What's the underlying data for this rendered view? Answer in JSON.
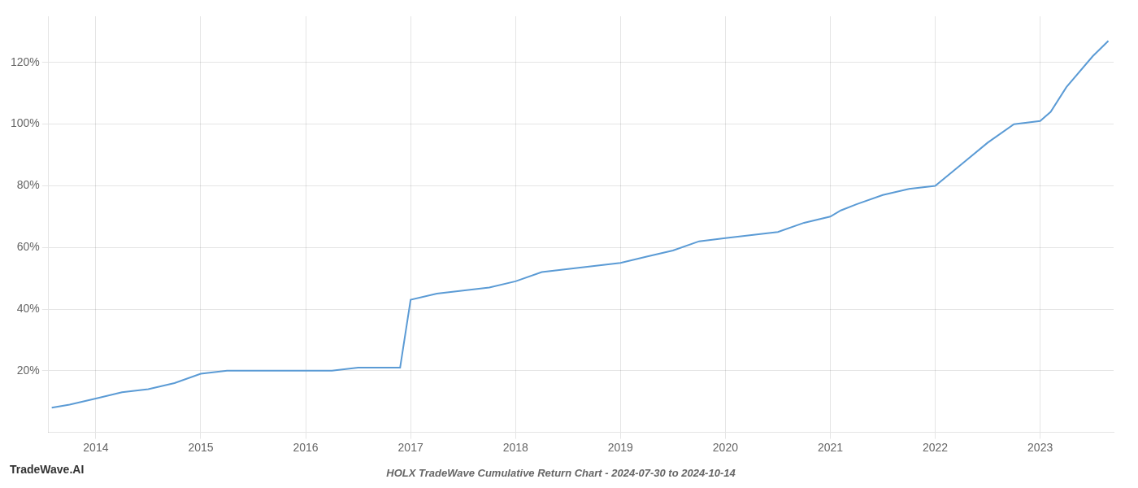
{
  "chart_data": {
    "type": "line",
    "title": "HOLX TradeWave Cumulative Return Chart - 2024-07-30 to 2024-10-14",
    "annotations": [
      "TradeWave.AI"
    ],
    "x": [
      2013.58,
      2013.75,
      2014.0,
      2014.25,
      2014.5,
      2014.75,
      2015.0,
      2015.25,
      2015.5,
      2015.75,
      2016.0,
      2016.25,
      2016.5,
      2016.75,
      2016.9,
      2017.0,
      2017.25,
      2017.5,
      2017.75,
      2018.0,
      2018.25,
      2018.5,
      2018.75,
      2019.0,
      2019.25,
      2019.5,
      2019.75,
      2020.0,
      2020.25,
      2020.5,
      2020.75,
      2021.0,
      2021.1,
      2021.25,
      2021.5,
      2021.75,
      2022.0,
      2022.25,
      2022.5,
      2022.75,
      2023.0,
      2023.1,
      2023.25,
      2023.5,
      2023.65
    ],
    "values": [
      8,
      9,
      11,
      13,
      14,
      16,
      19,
      20,
      20,
      20,
      20,
      20,
      21,
      21,
      21,
      43,
      45,
      46,
      47,
      49,
      52,
      53,
      54,
      55,
      57,
      59,
      62,
      63,
      64,
      65,
      68,
      70,
      72,
      74,
      77,
      79,
      80,
      87,
      94,
      100,
      101,
      104,
      112,
      122,
      127
    ],
    "color": "#5b9bd5",
    "xlim": [
      2013.55,
      2023.7
    ],
    "ylim": [
      0,
      135
    ],
    "xticks": [
      2014,
      2015,
      2016,
      2017,
      2018,
      2019,
      2020,
      2021,
      2022,
      2023
    ],
    "yticks": [
      {
        "value": 20,
        "label": "20%"
      },
      {
        "value": 40,
        "label": "40%"
      },
      {
        "value": 60,
        "label": "60%"
      },
      {
        "value": 80,
        "label": "80%"
      },
      {
        "value": 100,
        "label": "100%"
      },
      {
        "value": 120,
        "label": "120%"
      }
    ],
    "grid": true,
    "marker": "none"
  }
}
